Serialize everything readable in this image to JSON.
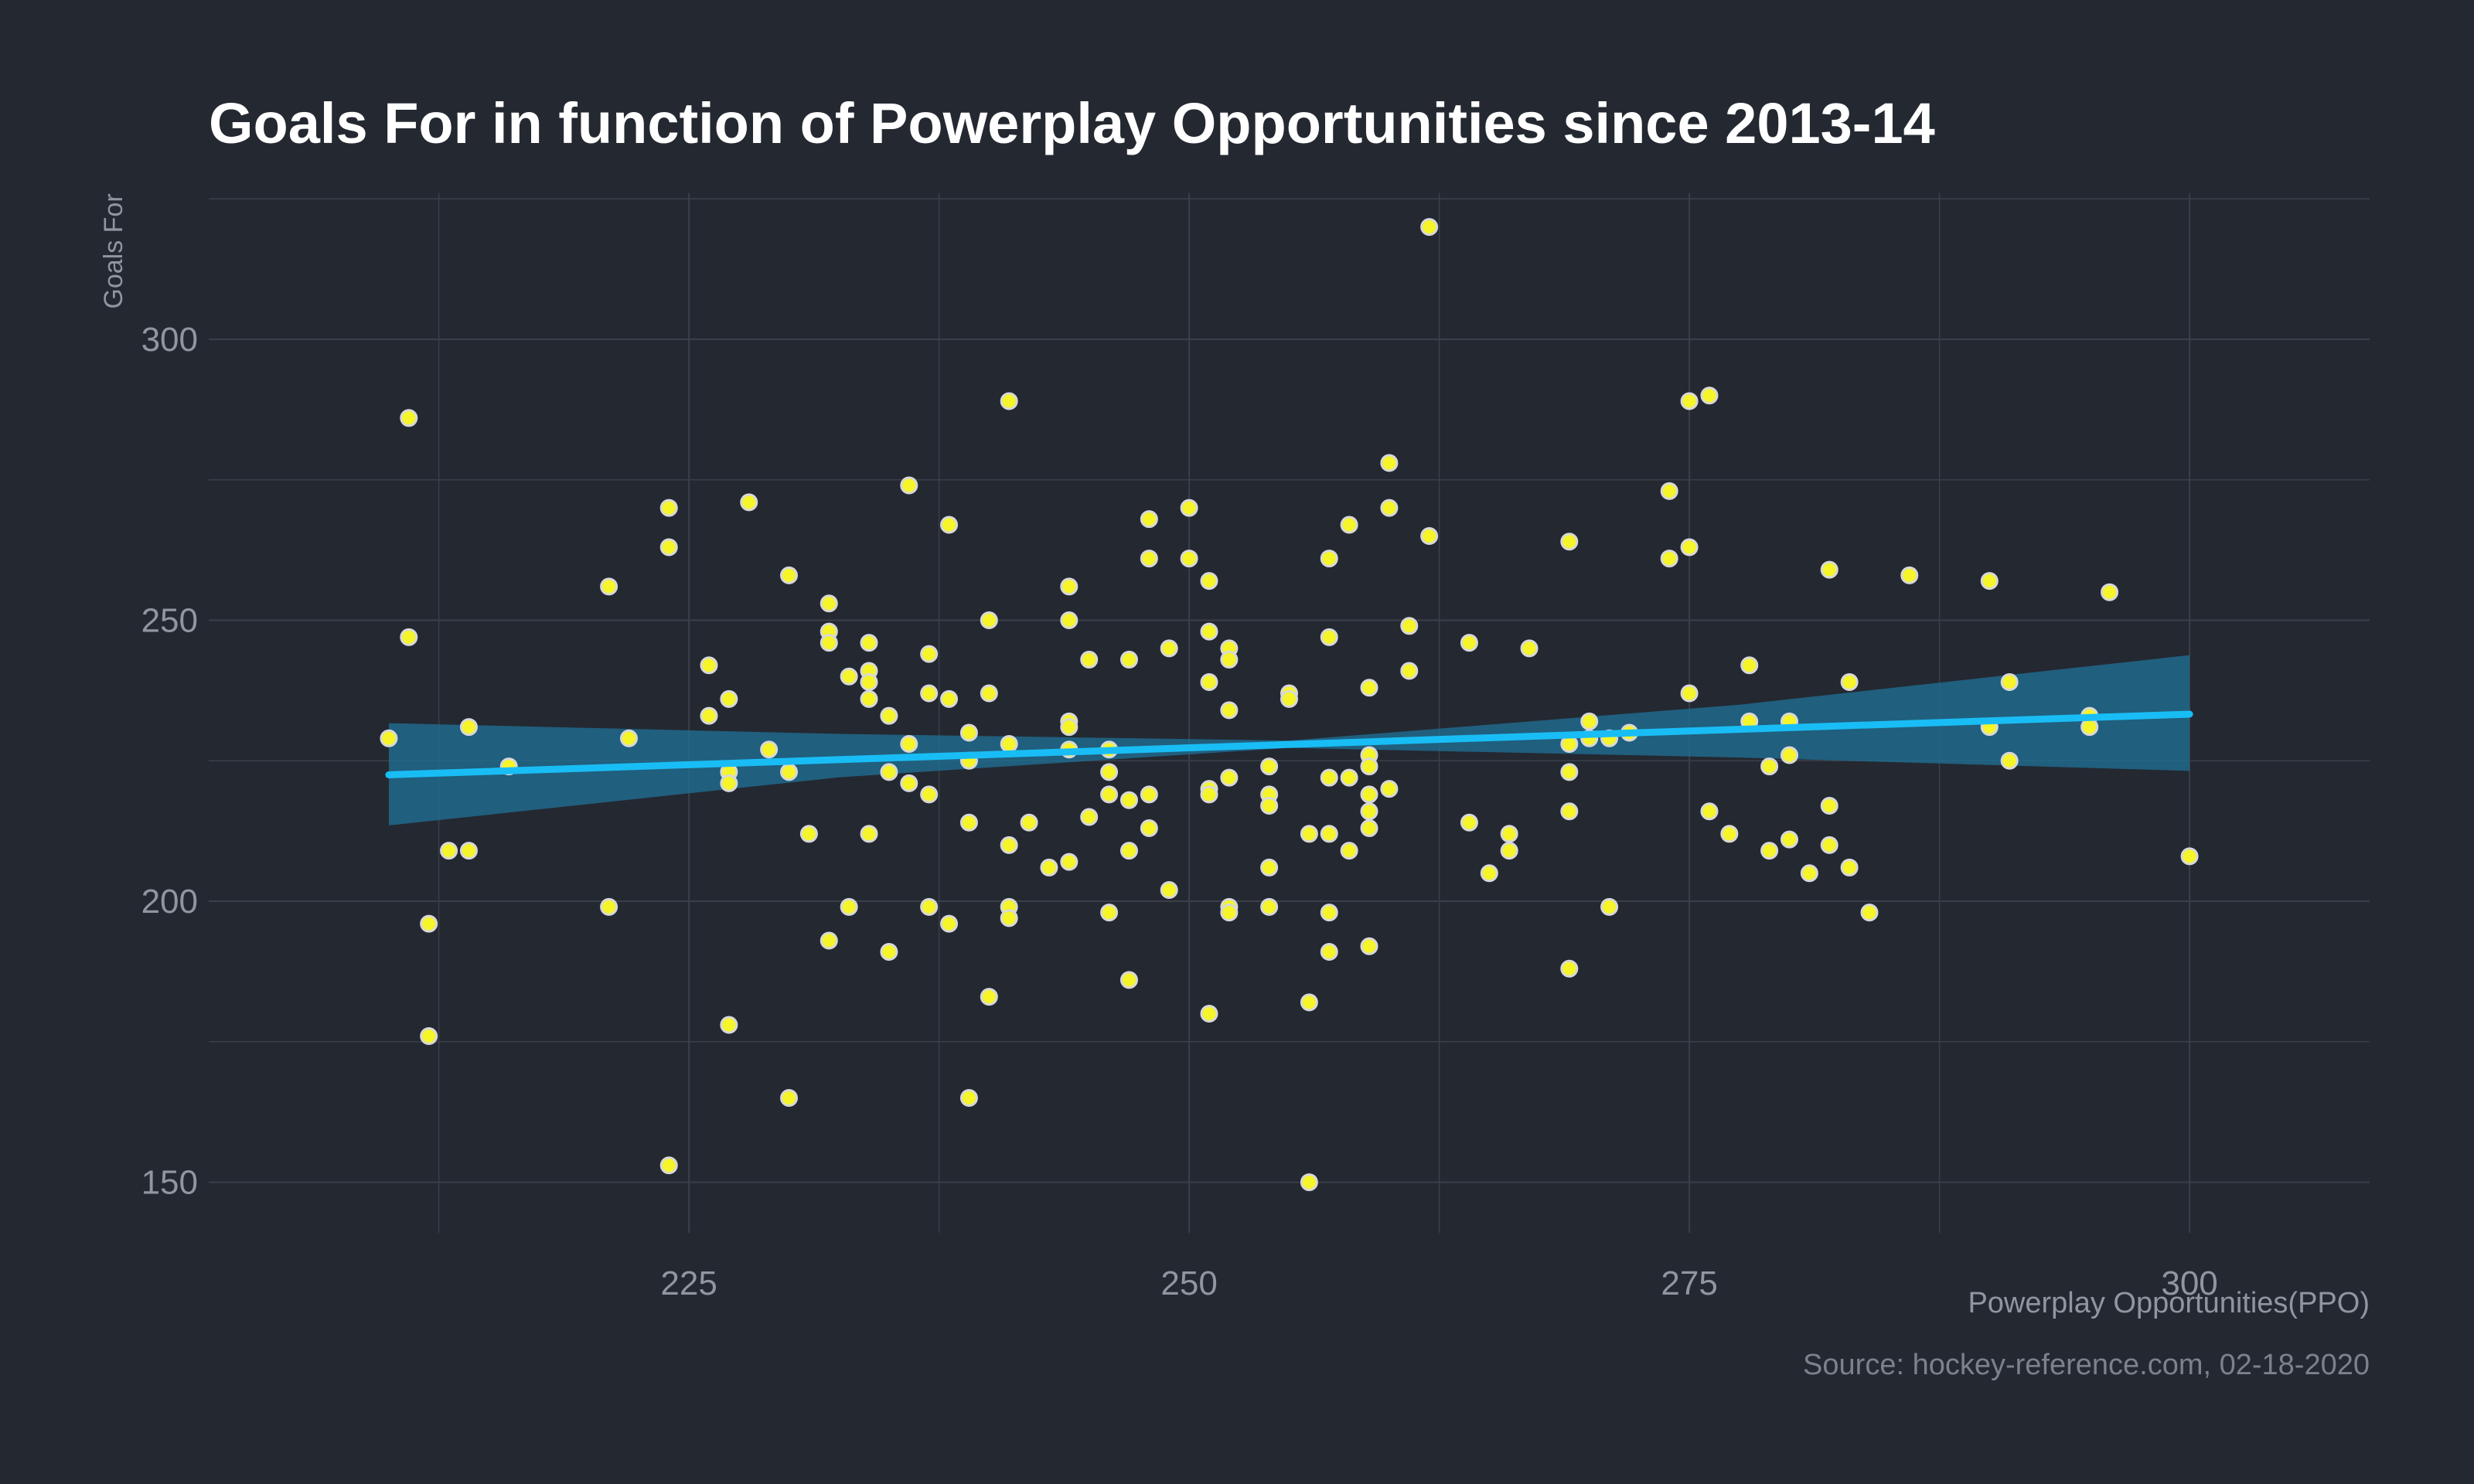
{
  "chart_data": {
    "type": "scatter",
    "title": "Goals For in function of Powerplay Opportunities since 2013-14",
    "xlabel": "Powerplay Opportunities(PPO)",
    "ylabel": "Goals For",
    "caption": "Source: hockey-reference.com, 02-18-2020",
    "xlim": [
      201,
      309
    ],
    "ylim": [
      141,
      326
    ],
    "x_ticks": [
      225,
      250,
      275,
      300
    ],
    "y_ticks": [
      150,
      200,
      250,
      300
    ],
    "grid": true,
    "colors": {
      "background": "#242831",
      "grid": "#3a3f49",
      "point_fill": "#f5f52a",
      "point_stroke": "#d8d8d8",
      "trend_line": "#19bdf6",
      "confidence_band": "#1f6f93",
      "title": "#ffffff",
      "axis_text": "#9096a0"
    },
    "points": [
      [
        210,
        229
      ],
      [
        211,
        286
      ],
      [
        211,
        247
      ],
      [
        212,
        196
      ],
      [
        212,
        176
      ],
      [
        213,
        209
      ],
      [
        214,
        209
      ],
      [
        214,
        231
      ],
      [
        216,
        224
      ],
      [
        221,
        256
      ],
      [
        221,
        199
      ],
      [
        222,
        229
      ],
      [
        224,
        270
      ],
      [
        224,
        263
      ],
      [
        224,
        153
      ],
      [
        226,
        242
      ],
      [
        226,
        233
      ],
      [
        227,
        236
      ],
      [
        227,
        223
      ],
      [
        227,
        221
      ],
      [
        227,
        178
      ],
      [
        228,
        271
      ],
      [
        229,
        227
      ],
      [
        230,
        258
      ],
      [
        230,
        223
      ],
      [
        230,
        165
      ],
      [
        231,
        212
      ],
      [
        232,
        253
      ],
      [
        232,
        248
      ],
      [
        232,
        246
      ],
      [
        232,
        193
      ],
      [
        233,
        240
      ],
      [
        233,
        199
      ],
      [
        234,
        246
      ],
      [
        234,
        241
      ],
      [
        234,
        239
      ],
      [
        234,
        236
      ],
      [
        234,
        212
      ],
      [
        235,
        233
      ],
      [
        235,
        223
      ],
      [
        235,
        191
      ],
      [
        236,
        274
      ],
      [
        236,
        228
      ],
      [
        236,
        221
      ],
      [
        237,
        244
      ],
      [
        237,
        237
      ],
      [
        237,
        219
      ],
      [
        237,
        199
      ],
      [
        238,
        267
      ],
      [
        238,
        236
      ],
      [
        238,
        196
      ],
      [
        239,
        230
      ],
      [
        239,
        225
      ],
      [
        239,
        214
      ],
      [
        239,
        165
      ],
      [
        240,
        250
      ],
      [
        240,
        237
      ],
      [
        240,
        183
      ],
      [
        241,
        289
      ],
      [
        241,
        228
      ],
      [
        241,
        210
      ],
      [
        241,
        199
      ],
      [
        241,
        197
      ],
      [
        242,
        214
      ],
      [
        243,
        206
      ],
      [
        244,
        256
      ],
      [
        244,
        250
      ],
      [
        244,
        232
      ],
      [
        244,
        231
      ],
      [
        244,
        227
      ],
      [
        244,
        207
      ],
      [
        245,
        243
      ],
      [
        245,
        215
      ],
      [
        246,
        227
      ],
      [
        246,
        223
      ],
      [
        246,
        219
      ],
      [
        246,
        198
      ],
      [
        247,
        243
      ],
      [
        247,
        218
      ],
      [
        247,
        209
      ],
      [
        247,
        186
      ],
      [
        248,
        268
      ],
      [
        248,
        261
      ],
      [
        248,
        219
      ],
      [
        248,
        213
      ],
      [
        249,
        245
      ],
      [
        249,
        202
      ],
      [
        250,
        270
      ],
      [
        250,
        261
      ],
      [
        251,
        257
      ],
      [
        251,
        248
      ],
      [
        251,
        239
      ],
      [
        251,
        220
      ],
      [
        251,
        219
      ],
      [
        251,
        180
      ],
      [
        252,
        245
      ],
      [
        252,
        243
      ],
      [
        252,
        234
      ],
      [
        252,
        222
      ],
      [
        252,
        199
      ],
      [
        252,
        198
      ],
      [
        254,
        224
      ],
      [
        254,
        219
      ],
      [
        254,
        217
      ],
      [
        254,
        206
      ],
      [
        254,
        199
      ],
      [
        255,
        237
      ],
      [
        255,
        236
      ],
      [
        256,
        212
      ],
      [
        256,
        182
      ],
      [
        256,
        150
      ],
      [
        257,
        261
      ],
      [
        257,
        247
      ],
      [
        257,
        222
      ],
      [
        257,
        212
      ],
      [
        257,
        198
      ],
      [
        257,
        191
      ],
      [
        258,
        267
      ],
      [
        258,
        222
      ],
      [
        258,
        209
      ],
      [
        259,
        238
      ],
      [
        259,
        226
      ],
      [
        259,
        224
      ],
      [
        259,
        219
      ],
      [
        259,
        216
      ],
      [
        259,
        213
      ],
      [
        259,
        192
      ],
      [
        260,
        278
      ],
      [
        260,
        270
      ],
      [
        260,
        220
      ],
      [
        261,
        249
      ],
      [
        261,
        241
      ],
      [
        262,
        320
      ],
      [
        262,
        265
      ],
      [
        264,
        246
      ],
      [
        264,
        214
      ],
      [
        265,
        205
      ],
      [
        266,
        212
      ],
      [
        266,
        209
      ],
      [
        267,
        245
      ],
      [
        269,
        264
      ],
      [
        269,
        228
      ],
      [
        269,
        223
      ],
      [
        269,
        216
      ],
      [
        269,
        188
      ],
      [
        270,
        232
      ],
      [
        270,
        229
      ],
      [
        271,
        229
      ],
      [
        271,
        199
      ],
      [
        272,
        230
      ],
      [
        274,
        273
      ],
      [
        274,
        261
      ],
      [
        275,
        289
      ],
      [
        275,
        263
      ],
      [
        275,
        237
      ],
      [
        276,
        290
      ],
      [
        276,
        216
      ],
      [
        277,
        212
      ],
      [
        278,
        242
      ],
      [
        278,
        232
      ],
      [
        279,
        224
      ],
      [
        279,
        209
      ],
      [
        280,
        232
      ],
      [
        280,
        226
      ],
      [
        280,
        211
      ],
      [
        281,
        205
      ],
      [
        282,
        259
      ],
      [
        282,
        217
      ],
      [
        282,
        210
      ],
      [
        283,
        239
      ],
      [
        283,
        206
      ],
      [
        284,
        198
      ],
      [
        286,
        258
      ],
      [
        290,
        257
      ],
      [
        290,
        231
      ],
      [
        291,
        239
      ],
      [
        291,
        225
      ],
      [
        295,
        233
      ],
      [
        295,
        231
      ],
      [
        296,
        255
      ],
      [
        300,
        208
      ]
    ],
    "trend": {
      "type": "linear",
      "x_range": [
        210,
        300
      ],
      "fit": [
        222.5,
        233.3
      ],
      "band_low": [
        213.5,
        223.2
      ],
      "band_high": [
        231.7,
        243.8
      ],
      "band_mid_low": [
        227.3,
        227.0
      ],
      "band_mid_high": [
        228.6,
        229.8
      ]
    }
  }
}
